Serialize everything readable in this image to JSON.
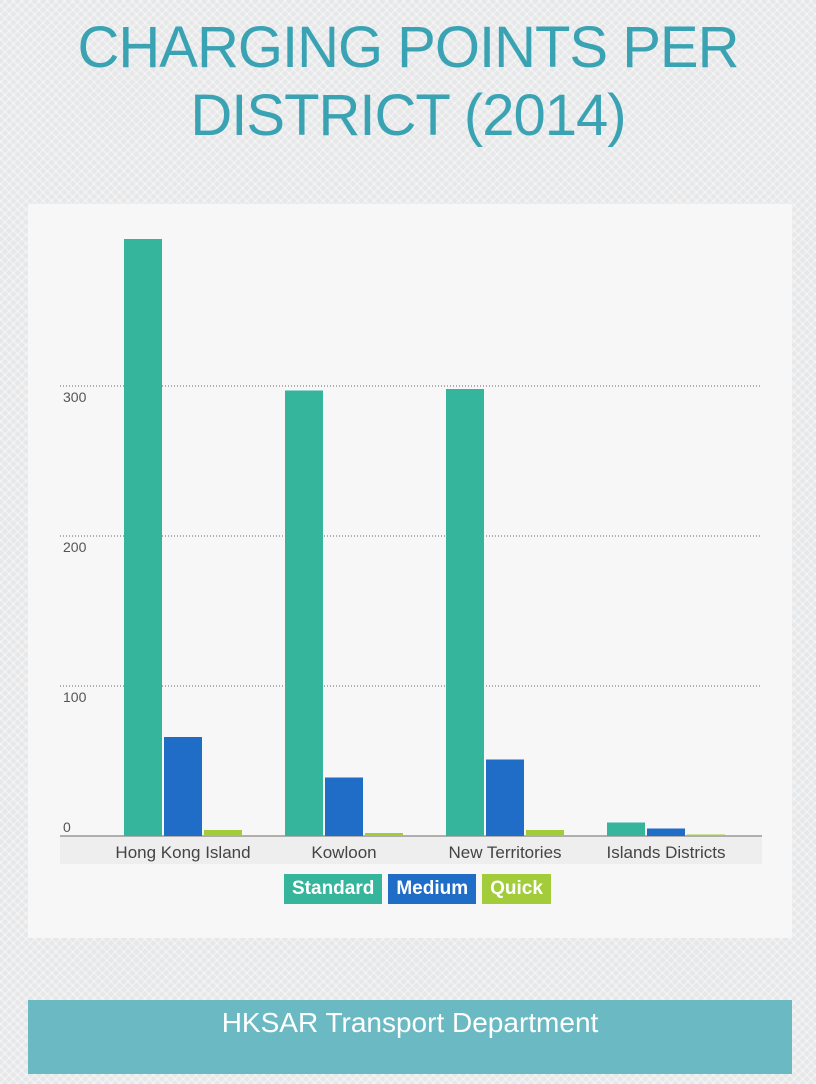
{
  "title": "CHARGING POINTS PER DISTRICT (2014)",
  "footer": "HKSAR Transport Department",
  "colors": {
    "standard": "#35b59c",
    "medium": "#1f6dc6",
    "quick": "#a2cc3a",
    "grid": "#666666",
    "axis_text": "#555555"
  },
  "chart_data": {
    "type": "bar",
    "title": "CHARGING POINTS PER DISTRICT (2014)",
    "categories": [
      "Hong Kong Island",
      "Kowloon",
      "New Territories",
      "Islands Districts"
    ],
    "series": [
      {
        "name": "Standard",
        "values": [
          398,
          297,
          298,
          9
        ],
        "color": "#35b59c"
      },
      {
        "name": "Medium",
        "values": [
          66,
          39,
          51,
          5
        ],
        "color": "#1f6dc6"
      },
      {
        "name": "Quick",
        "values": [
          4,
          2,
          4,
          1
        ],
        "color": "#a2cc3a"
      }
    ],
    "yticks": [
      0,
      100,
      200,
      300
    ],
    "ylim": [
      0,
      400
    ],
    "grid": true,
    "legend": "bottom-center"
  }
}
